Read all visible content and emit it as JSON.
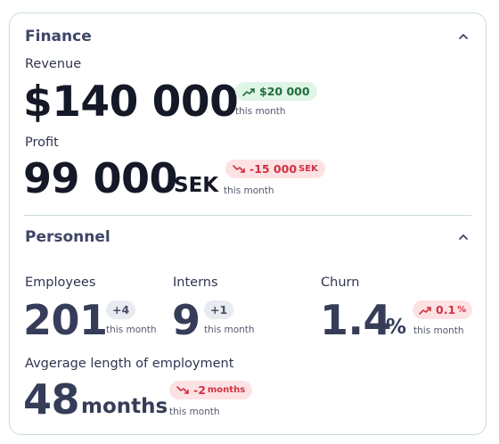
{
  "finance": {
    "title": "Finance",
    "revenue": {
      "label": "Revenue",
      "value": "$140 000",
      "change": "$20 000",
      "change_period": "this month",
      "trend": "up"
    },
    "profit": {
      "label": "Profit",
      "value": "99 000",
      "unit": "SEK",
      "change": "-15 000",
      "change_unit": "SEK",
      "change_period": "this month",
      "trend": "down"
    }
  },
  "personnel": {
    "title": "Personnel",
    "employees": {
      "label": "Employees",
      "value": "201",
      "change": "+4",
      "change_period": "this month"
    },
    "interns": {
      "label": "Interns",
      "value": "9",
      "change": "+1",
      "change_period": "this month"
    },
    "churn": {
      "label": "Churn",
      "value": "1.4",
      "unit": "%",
      "change": "0.1",
      "change_unit": "%",
      "change_period": "this month",
      "trend": "up"
    },
    "avg_employment": {
      "label": "Avgerage length of employment",
      "value": "48",
      "unit": "months",
      "change": "-2",
      "change_unit": "months",
      "change_period": "this month",
      "trend": "down"
    }
  },
  "colors": {
    "up_bg": "#dff5e6",
    "up_text": "#1f6e3d",
    "down_bg": "#fde2e4",
    "down_text": "#d2313f",
    "border": "#c9dcdf"
  },
  "icons": {
    "collapse": "chevron-up-icon",
    "trend_up": "trending-up-icon",
    "trend_down": "trending-down-icon"
  }
}
